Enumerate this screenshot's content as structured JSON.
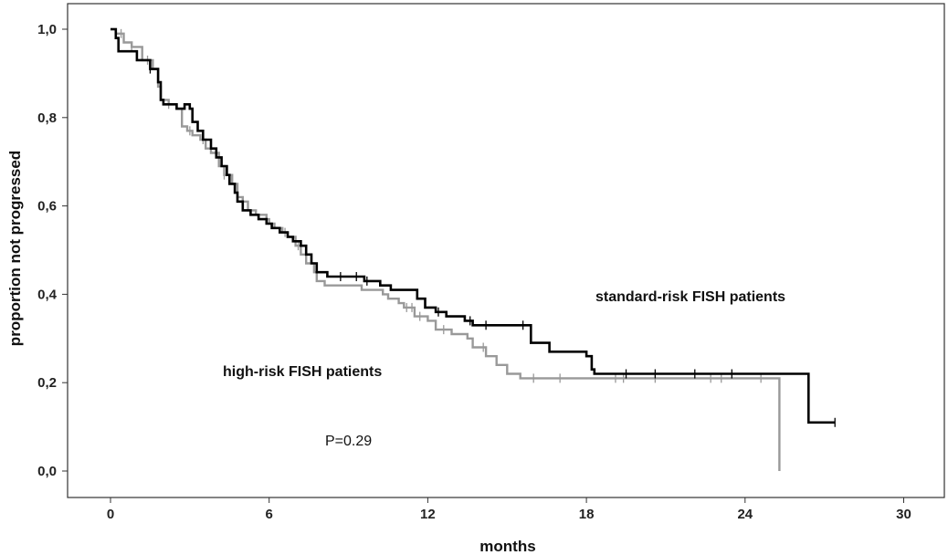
{
  "chart_data": {
    "type": "line",
    "subtype": "kaplan-meier",
    "xlabel": "months",
    "ylabel": "proportion not progressed",
    "xlim": [
      0,
      31
    ],
    "ylim": [
      0,
      1.05
    ],
    "x_ticks": [
      0,
      6,
      12,
      18,
      24,
      30
    ],
    "x_tick_labels": [
      "0",
      "6",
      "12",
      "18",
      "24",
      "30"
    ],
    "y_ticks": [
      0,
      0.2,
      0.4,
      0.6,
      0.8,
      1.0
    ],
    "y_tick_labels": [
      "0,0",
      "0,2",
      "0,4",
      "0,6",
      "0,8",
      "1,0"
    ],
    "grid": false,
    "annotations": {
      "standard": "standard-risk FISH patients",
      "high": "high-risk FISH patients",
      "pvalue": "P=0.29"
    },
    "series": [
      {
        "key": "standard",
        "color": "#000000",
        "steps": [
          [
            0,
            1.0
          ],
          [
            0.2,
            0.98
          ],
          [
            0.3,
            0.95
          ],
          [
            1.0,
            0.93
          ],
          [
            1.5,
            0.91
          ],
          [
            1.8,
            0.88
          ],
          [
            1.9,
            0.84
          ],
          [
            2.0,
            0.83
          ],
          [
            2.5,
            0.82
          ],
          [
            2.8,
            0.83
          ],
          [
            3.0,
            0.82
          ],
          [
            3.1,
            0.79
          ],
          [
            3.3,
            0.77
          ],
          [
            3.5,
            0.75
          ],
          [
            3.8,
            0.73
          ],
          [
            4.0,
            0.71
          ],
          [
            4.2,
            0.69
          ],
          [
            4.4,
            0.67
          ],
          [
            4.5,
            0.65
          ],
          [
            4.7,
            0.63
          ],
          [
            4.8,
            0.61
          ],
          [
            5.0,
            0.59
          ],
          [
            5.3,
            0.58
          ],
          [
            5.6,
            0.57
          ],
          [
            5.9,
            0.56
          ],
          [
            6.1,
            0.55
          ],
          [
            6.4,
            0.54
          ],
          [
            6.7,
            0.53
          ],
          [
            6.9,
            0.52
          ],
          [
            7.2,
            0.51
          ],
          [
            7.4,
            0.49
          ],
          [
            7.6,
            0.47
          ],
          [
            7.8,
            0.45
          ],
          [
            8.2,
            0.44
          ],
          [
            9.6,
            0.43
          ],
          [
            10.2,
            0.42
          ],
          [
            10.6,
            0.41
          ],
          [
            11.6,
            0.39
          ],
          [
            11.9,
            0.37
          ],
          [
            12.3,
            0.36
          ],
          [
            12.7,
            0.35
          ],
          [
            13.4,
            0.34
          ],
          [
            13.7,
            0.33
          ],
          [
            15.6,
            0.33
          ],
          [
            15.9,
            0.29
          ],
          [
            16.5,
            0.29
          ],
          [
            16.6,
            0.27
          ],
          [
            18.0,
            0.26
          ],
          [
            18.2,
            0.23
          ],
          [
            18.3,
            0.22
          ],
          [
            26.3,
            0.22
          ],
          [
            26.4,
            0.11
          ],
          [
            27.4,
            0.11
          ]
        ],
        "censors": [
          [
            1.5,
            0.91
          ],
          [
            8.7,
            0.44
          ],
          [
            9.3,
            0.44
          ],
          [
            9.7,
            0.43
          ],
          [
            12.4,
            0.36
          ],
          [
            13.6,
            0.34
          ],
          [
            14.2,
            0.33
          ],
          [
            15.6,
            0.33
          ],
          [
            19.5,
            0.22
          ],
          [
            20.6,
            0.22
          ],
          [
            22.1,
            0.22
          ],
          [
            23.5,
            0.22
          ],
          [
            27.4,
            0.11
          ]
        ]
      },
      {
        "key": "high",
        "color": "#999999",
        "steps": [
          [
            0,
            1.0
          ],
          [
            0.2,
            0.99
          ],
          [
            0.5,
            0.97
          ],
          [
            0.8,
            0.96
          ],
          [
            1.2,
            0.93
          ],
          [
            1.6,
            0.91
          ],
          [
            1.8,
            0.87
          ],
          [
            1.9,
            0.84
          ],
          [
            2.2,
            0.83
          ],
          [
            2.5,
            0.82
          ],
          [
            2.7,
            0.78
          ],
          [
            2.9,
            0.77
          ],
          [
            3.1,
            0.76
          ],
          [
            3.4,
            0.75
          ],
          [
            3.6,
            0.73
          ],
          [
            3.8,
            0.72
          ],
          [
            4.1,
            0.69
          ],
          [
            4.3,
            0.67
          ],
          [
            4.6,
            0.65
          ],
          [
            4.8,
            0.62
          ],
          [
            5.0,
            0.61
          ],
          [
            5.2,
            0.59
          ],
          [
            5.5,
            0.58
          ],
          [
            5.9,
            0.57
          ],
          [
            6.0,
            0.56
          ],
          [
            6.2,
            0.55
          ],
          [
            6.5,
            0.54
          ],
          [
            6.7,
            0.53
          ],
          [
            7.0,
            0.51
          ],
          [
            7.2,
            0.49
          ],
          [
            7.4,
            0.47
          ],
          [
            7.7,
            0.45
          ],
          [
            7.8,
            0.43
          ],
          [
            8.1,
            0.42
          ],
          [
            9.3,
            0.42
          ],
          [
            9.5,
            0.41
          ],
          [
            10.3,
            0.4
          ],
          [
            10.5,
            0.39
          ],
          [
            10.9,
            0.38
          ],
          [
            11.1,
            0.37
          ],
          [
            11.5,
            0.35
          ],
          [
            12.0,
            0.34
          ],
          [
            12.3,
            0.32
          ],
          [
            12.9,
            0.31
          ],
          [
            13.5,
            0.3
          ],
          [
            13.7,
            0.28
          ],
          [
            14.0,
            0.28
          ],
          [
            14.2,
            0.26
          ],
          [
            14.6,
            0.24
          ],
          [
            15.0,
            0.22
          ],
          [
            15.5,
            0.21
          ],
          [
            25.3,
            0.21
          ],
          [
            25.3,
            0.0
          ]
        ],
        "censors": [
          [
            0.4,
            0.99
          ],
          [
            0.8,
            0.96
          ],
          [
            1.4,
            0.93
          ],
          [
            2.2,
            0.83
          ],
          [
            3.0,
            0.77
          ],
          [
            3.5,
            0.75
          ],
          [
            4.3,
            0.67
          ],
          [
            5.9,
            0.57
          ],
          [
            6.6,
            0.54
          ],
          [
            7.1,
            0.51
          ],
          [
            11.2,
            0.37
          ],
          [
            11.4,
            0.37
          ],
          [
            11.7,
            0.35
          ],
          [
            12.6,
            0.32
          ],
          [
            14.1,
            0.28
          ],
          [
            16.0,
            0.21
          ],
          [
            17.0,
            0.21
          ],
          [
            19.1,
            0.21
          ],
          [
            19.4,
            0.21
          ],
          [
            20.6,
            0.21
          ],
          [
            22.7,
            0.21
          ],
          [
            23.1,
            0.21
          ],
          [
            24.6,
            0.21
          ]
        ]
      }
    ]
  }
}
